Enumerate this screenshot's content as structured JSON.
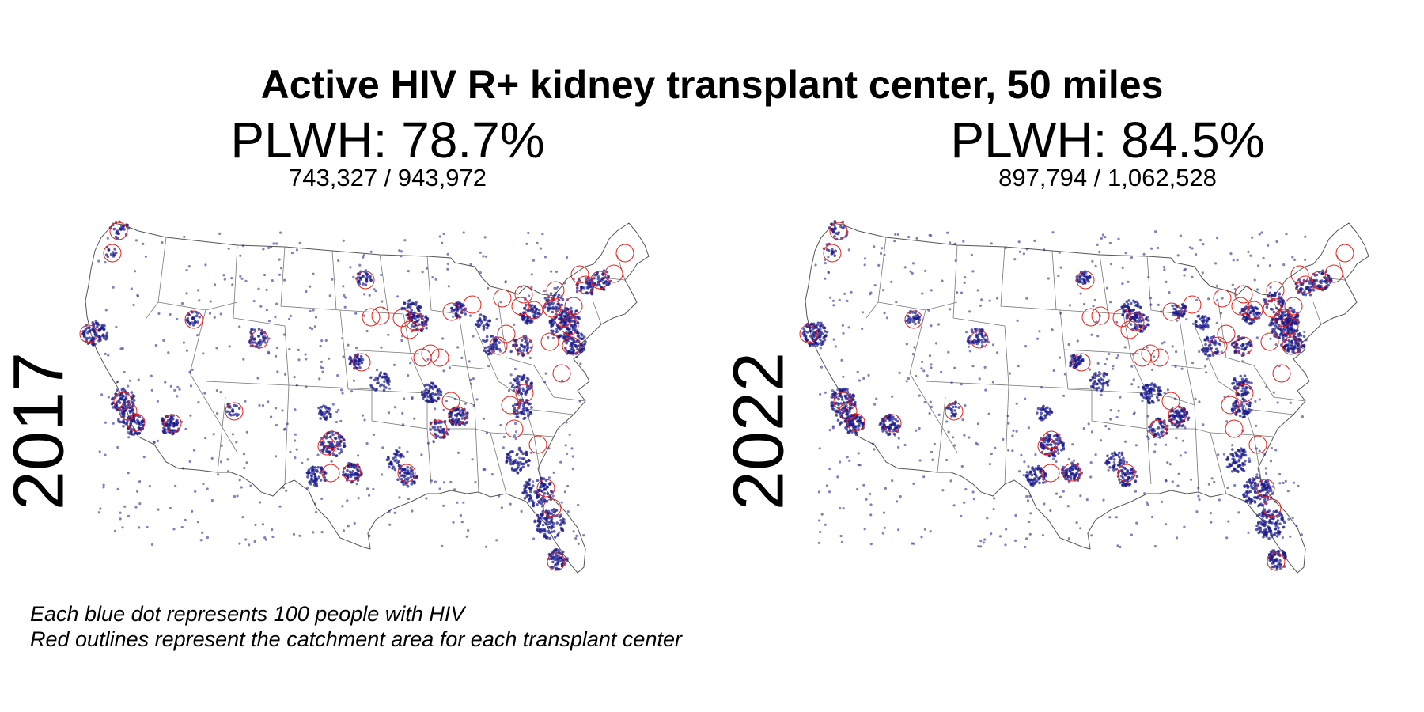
{
  "title": "Active HIV R+ kidney transplant center, 50 miles",
  "panels": [
    {
      "year": "2017",
      "plwh": "PLWH: 78.7%",
      "fraction": "743,327 / 943,972"
    },
    {
      "year": "2022",
      "plwh": "PLWH: 84.5%",
      "fraction": "897,794 / 1,062,528"
    }
  ],
  "notes": {
    "line1": "Each blue dot represents 100 people with HIV",
    "line2": "Red outlines represent the catchment area for each transplant center"
  },
  "legend_colors": {
    "dots": "#1a1a8c",
    "catchment": "#e8201a",
    "state_lines": "#555555"
  }
}
